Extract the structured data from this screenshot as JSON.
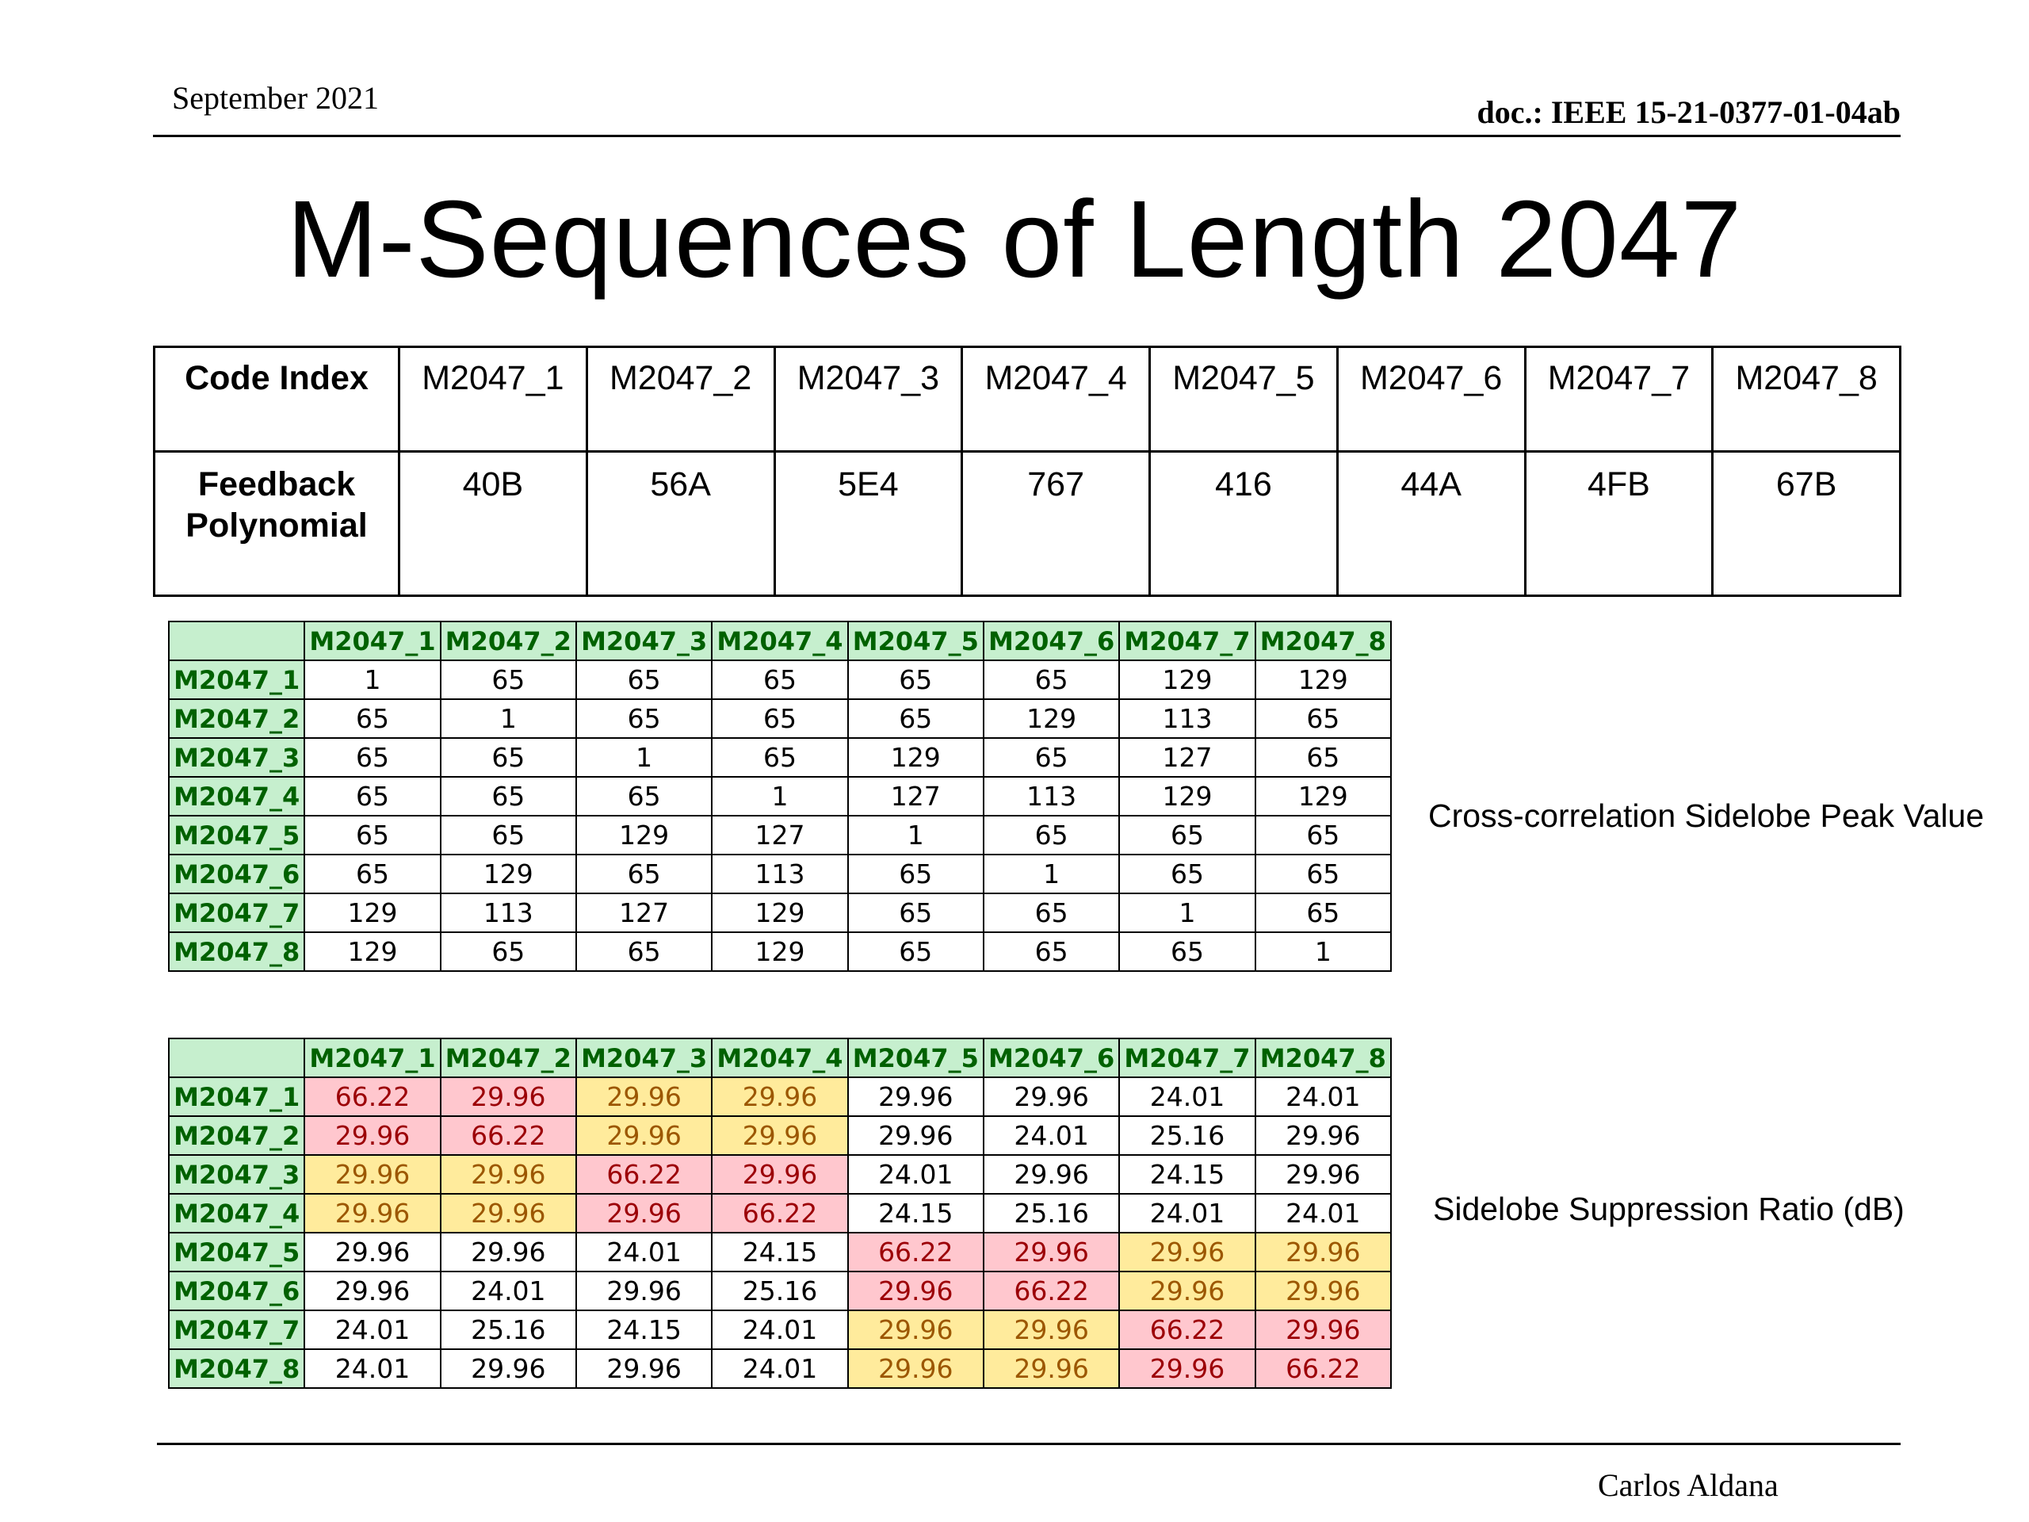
{
  "header": {
    "date": "September 2021",
    "doc_id": "doc.: IEEE 15-21-0377-01-04ab"
  },
  "title": "M-Sequences of Length 2047",
  "code_table": {
    "row1_label": "Code Index",
    "row2_label_line1": "Feedback",
    "row2_label_line2": "Polynomial",
    "codes": [
      "M2047_1",
      "M2047_2",
      "M2047_3",
      "M2047_4",
      "M2047_5",
      "M2047_6",
      "M2047_7",
      "M2047_8"
    ],
    "polynomials": [
      "40B",
      "56A",
      "5E4",
      "767",
      "416",
      "44A",
      "4FB",
      "67B"
    ]
  },
  "cross_correlation": {
    "label": "Cross-correlation Sidelobe Peak Value",
    "headers": [
      "M2047_1",
      "M2047_2",
      "M2047_3",
      "M2047_4",
      "M2047_5",
      "M2047_6",
      "M2047_7",
      "M2047_8"
    ],
    "rows": [
      {
        "label": "M2047_1",
        "values": [
          "1",
          "65",
          "65",
          "65",
          "65",
          "65",
          "129",
          "129"
        ]
      },
      {
        "label": "M2047_2",
        "values": [
          "65",
          "1",
          "65",
          "65",
          "65",
          "129",
          "113",
          "65"
        ]
      },
      {
        "label": "M2047_3",
        "values": [
          "65",
          "65",
          "1",
          "65",
          "129",
          "65",
          "127",
          "65"
        ]
      },
      {
        "label": "M2047_4",
        "values": [
          "65",
          "65",
          "65",
          "1",
          "127",
          "113",
          "129",
          "129"
        ]
      },
      {
        "label": "M2047_5",
        "values": [
          "65",
          "65",
          "129",
          "127",
          "1",
          "65",
          "65",
          "65"
        ]
      },
      {
        "label": "M2047_6",
        "values": [
          "65",
          "129",
          "65",
          "113",
          "65",
          "1",
          "65",
          "65"
        ]
      },
      {
        "label": "M2047_7",
        "values": [
          "129",
          "113",
          "127",
          "129",
          "65",
          "65",
          "1",
          "65"
        ]
      },
      {
        "label": "M2047_8",
        "values": [
          "129",
          "65",
          "65",
          "129",
          "65",
          "65",
          "65",
          "1"
        ]
      }
    ]
  },
  "suppression_ratio": {
    "label": "Sidelobe Suppression Ratio (dB)",
    "headers": [
      "M2047_1",
      "M2047_2",
      "M2047_3",
      "M2047_4",
      "M2047_5",
      "M2047_6",
      "M2047_7",
      "M2047_8"
    ],
    "highlight_colors": {
      "red_fill": "#ffc7ce",
      "red_text": "#9c0006",
      "yellow_fill": "#ffeb9c",
      "yellow_text": "#9c5700",
      "header_fill": "#c6efce",
      "header_text": "#006100"
    },
    "rows": [
      {
        "label": "M2047_1",
        "values": [
          "66.22",
          "29.96",
          "29.96",
          "29.96",
          "29.96",
          "29.96",
          "24.01",
          "24.01"
        ]
      },
      {
        "label": "M2047_2",
        "values": [
          "29.96",
          "66.22",
          "29.96",
          "29.96",
          "29.96",
          "24.01",
          "25.16",
          "29.96"
        ]
      },
      {
        "label": "M2047_3",
        "values": [
          "29.96",
          "29.96",
          "66.22",
          "29.96",
          "24.01",
          "29.96",
          "24.15",
          "29.96"
        ]
      },
      {
        "label": "M2047_4",
        "values": [
          "29.96",
          "29.96",
          "29.96",
          "66.22",
          "24.15",
          "25.16",
          "24.01",
          "24.01"
        ]
      },
      {
        "label": "M2047_5",
        "values": [
          "29.96",
          "29.96",
          "24.01",
          "24.15",
          "66.22",
          "29.96",
          "29.96",
          "29.96"
        ]
      },
      {
        "label": "M2047_6",
        "values": [
          "29.96",
          "24.01",
          "29.96",
          "25.16",
          "29.96",
          "66.22",
          "29.96",
          "29.96"
        ]
      },
      {
        "label": "M2047_7",
        "values": [
          "24.01",
          "25.16",
          "24.15",
          "24.01",
          "29.96",
          "29.96",
          "66.22",
          "29.96"
        ]
      },
      {
        "label": "M2047_8",
        "values": [
          "24.01",
          "29.96",
          "29.96",
          "24.01",
          "29.96",
          "29.96",
          "29.96",
          "66.22"
        ]
      }
    ]
  },
  "footer": {
    "author": "Carlos Aldana"
  }
}
